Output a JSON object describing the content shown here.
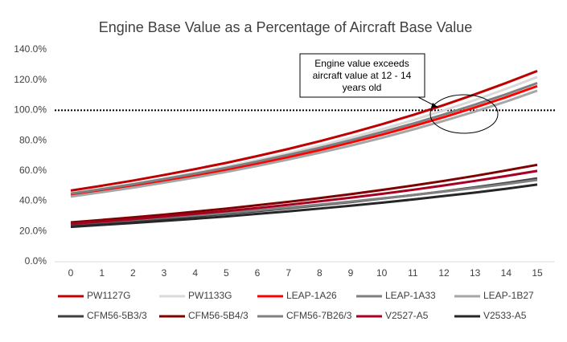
{
  "chart_data": {
    "type": "line",
    "title": "Engine Base Value as a Percentage of Aircraft Base Value",
    "x": [
      0,
      1,
      2,
      3,
      4,
      5,
      6,
      7,
      8,
      9,
      10,
      11,
      12,
      13,
      14,
      15
    ],
    "xlim": [
      0,
      15
    ],
    "xticks": [
      0,
      1,
      2,
      3,
      4,
      5,
      6,
      7,
      8,
      9,
      10,
      11,
      12,
      13,
      14,
      15
    ],
    "ylim": [
      0,
      140
    ],
    "yticks": [
      {
        "value": 0,
        "label": "0.0%"
      },
      {
        "value": 20,
        "label": "20.0%"
      },
      {
        "value": 40,
        "label": "40.0%"
      },
      {
        "value": 60,
        "label": "60.0%"
      },
      {
        "value": 80,
        "label": "80.0%"
      },
      {
        "value": 100,
        "label": "100.0%"
      },
      {
        "value": 120,
        "label": "120.0%"
      },
      {
        "value": 140,
        "label": "140.0%"
      }
    ],
    "reference_line": 100,
    "annotation": [
      "Engine value exceeds",
      "aircraft value at 12 - 14",
      "years old"
    ],
    "series": [
      {
        "name": "PW1127G",
        "color": "#c00000",
        "values": [
          47,
          50.2,
          53.6,
          57.3,
          61.2,
          65.3,
          69.8,
          74.5,
          79.6,
          85.0,
          90.8,
          96.9,
          103.5,
          110.6,
          118.1,
          126.0
        ]
      },
      {
        "name": "PW1133G",
        "color": "#d9d9d9",
        "values": [
          45,
          48.1,
          51.4,
          54.9,
          58.7,
          62.8,
          67.1,
          71.7,
          76.6,
          81.9,
          87.5,
          93.5,
          100.0,
          106.8,
          114.2,
          122.0
        ]
      },
      {
        "name": "LEAP-1A26",
        "color": "#ff0000",
        "values": [
          44,
          46.9,
          50.1,
          53.4,
          57.0,
          60.8,
          64.8,
          69.1,
          73.7,
          78.7,
          83.9,
          89.5,
          95.5,
          101.9,
          108.7,
          116.0
        ]
      },
      {
        "name": "LEAP-1A33",
        "color": "#7f7f7f",
        "values": [
          45,
          48.0,
          51.2,
          54.6,
          58.2,
          62.0,
          66.2,
          70.6,
          75.2,
          80.2,
          85.6,
          91.2,
          97.3,
          103.8,
          110.6,
          118.0
        ]
      },
      {
        "name": "LEAP-1B27",
        "color": "#a6a6a6",
        "values": [
          43,
          45.9,
          48.9,
          52.2,
          55.6,
          59.3,
          63.3,
          67.5,
          72.0,
          76.7,
          81.8,
          87.3,
          93.1,
          99.2,
          105.8,
          113.0
        ]
      },
      {
        "name": "CFM56-5B3/3",
        "color": "#404040",
        "values": [
          24,
          25.4,
          26.8,
          28.3,
          29.9,
          31.6,
          33.4,
          35.3,
          37.3,
          39.4,
          41.7,
          44.0,
          46.5,
          49.2,
          52.0,
          55.0
        ]
      },
      {
        "name": "CFM56-5B4/3",
        "color": "#7f0000",
        "values": [
          26,
          27.6,
          29.3,
          31.1,
          33.1,
          35.1,
          37.3,
          39.6,
          42.0,
          44.6,
          47.4,
          50.3,
          53.4,
          56.7,
          60.3,
          64.0
        ]
      },
      {
        "name": "CFM56-7B26/3",
        "color": "#808080",
        "values": [
          25,
          26.3,
          27.7,
          29.2,
          30.7,
          32.3,
          34.0,
          35.8,
          37.7,
          39.7,
          41.8,
          44.0,
          46.3,
          48.7,
          51.3,
          54.0
        ]
      },
      {
        "name": "V2527-A5",
        "color": "#a50021",
        "values": [
          25,
          26.5,
          28.1,
          29.8,
          31.6,
          33.5,
          35.5,
          37.6,
          39.9,
          42.3,
          44.8,
          47.5,
          50.4,
          53.4,
          56.6,
          60.0
        ]
      },
      {
        "name": "V2533-A5",
        "color": "#262626",
        "values": [
          23,
          24.3,
          25.6,
          27.0,
          28.4,
          29.9,
          31.6,
          33.3,
          35.1,
          37.0,
          39.0,
          41.1,
          43.4,
          45.7,
          48.2,
          51.0
        ]
      }
    ]
  }
}
